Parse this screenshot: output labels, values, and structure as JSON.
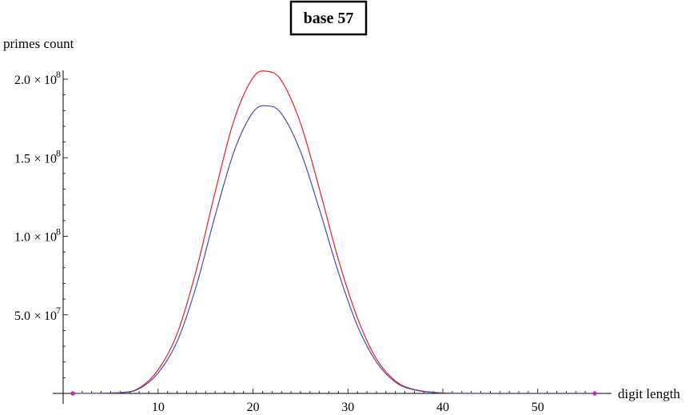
{
  "chart_data": {
    "type": "line",
    "title": "base 57",
    "xlabel": "digit length",
    "ylabel": "primes count",
    "xlim": [
      1,
      56
    ],
    "ylim": [
      0,
      205000000
    ],
    "x_ticks": [
      10,
      20,
      30,
      40,
      50
    ],
    "y_ticks": [
      {
        "mantissa": "5.0",
        "exponent": "7",
        "value": 50000000
      },
      {
        "mantissa": "1.0",
        "exponent": "8",
        "value": 100000000
      },
      {
        "mantissa": "1.5",
        "exponent": "8",
        "value": 150000000
      },
      {
        "mantissa": "2.0",
        "exponent": "8",
        "value": 200000000
      }
    ],
    "grid": false,
    "series": [
      {
        "color": "#e8202a",
        "x": [
          1,
          6,
          8,
          10,
          12,
          14,
          16,
          18,
          20,
          21.5,
          23,
          25,
          27,
          29,
          31,
          33,
          35,
          37,
          40,
          45,
          56
        ],
        "y": [
          0,
          500000,
          3500000,
          15000000,
          38000000,
          78000000,
          128000000,
          174000000,
          201000000,
          205000000,
          199000000,
          172000000,
          130000000,
          85000000,
          48000000,
          22000000,
          8000000,
          2500000,
          300000,
          0,
          0
        ]
      },
      {
        "color": "#4b4bb3",
        "x": [
          1,
          6,
          8,
          10,
          12,
          14,
          16,
          18,
          20,
          21.5,
          23,
          25,
          27,
          29,
          31,
          33,
          35,
          37,
          40,
          45,
          56
        ],
        "y": [
          0,
          450000,
          3000000,
          13000000,
          33000000,
          68000000,
          113000000,
          154000000,
          179000000,
          183000000,
          178000000,
          154000000,
          117000000,
          77000000,
          43000000,
          20000000,
          7200000,
          2200000,
          250000,
          0,
          0
        ]
      }
    ],
    "endpoints": {
      "color": "#cc1fcc",
      "x": [
        1,
        56
      ],
      "y": [
        0,
        0
      ]
    }
  }
}
